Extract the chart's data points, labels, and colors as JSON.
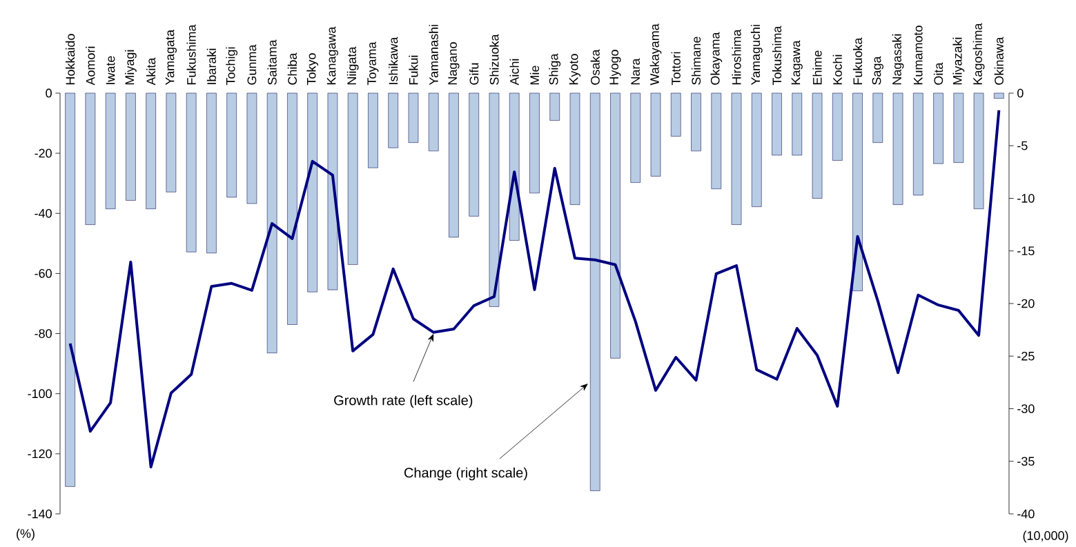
{
  "chart_data": {
    "type": "bar",
    "categories": [
      "Hokkaido",
      "Aomori",
      "Iwate",
      "Miyagi",
      "Akita",
      "Yamagata",
      "Fukushima",
      "Ibaraki",
      "Tochigi",
      "Gunma",
      "Saitama",
      "Chiba",
      "Tokyo",
      "Kanagawa",
      "Niigata",
      "Toyama",
      "Ishikawa",
      "Fukui",
      "Yamanashi",
      "Nagano",
      "Gifu",
      "Shizuoka",
      "Aichi",
      "Mie",
      "Shiga",
      "Kyoto",
      "Osaka",
      "Hyogo",
      "Nara",
      "Wakayama",
      "Tottori",
      "Shimane",
      "Okayama",
      "Hiroshima",
      "Yamaguchi",
      "Tokushima",
      "Kagawa",
      "Ehime",
      "Kochi",
      "Fukuoka",
      "Saga",
      "Nagasaki",
      "Kumamoto",
      "Oita",
      "Miyazaki",
      "Kagoshima",
      "Okinawa"
    ],
    "series": [
      {
        "axis": "y2",
        "color": "#b8cce4",
        "values": [
          -37.4,
          -12.5,
          -11.0,
          -10.2,
          -11.0,
          -9.4,
          -15.1,
          -15.2,
          -9.9,
          -10.5,
          -24.7,
          -22.0,
          -18.9,
          -18.7,
          -16.3,
          -7.1,
          -5.2,
          -4.7,
          -5.5,
          -13.7,
          -11.7,
          -20.3,
          -14.0,
          -9.5,
          -2.6,
          -10.6,
          -37.8,
          -25.2,
          -8.5,
          -7.9,
          -4.1,
          -5.5,
          -9.1,
          -12.5,
          -10.8,
          -5.9,
          -5.9,
          -10.0,
          -6.4,
          -18.8,
          -4.7,
          -10.6,
          -9.7,
          -6.7,
          -6.6,
          -11.0,
          -0.5
        ]
      },
      {
        "type": "line",
        "color": "#000080",
        "values": [
          -83.3,
          -112.5,
          -103.0,
          -56.2,
          -124.4,
          -99.8,
          -93.6,
          -64.3,
          -63.3,
          -65.6,
          -43.4,
          -48.4,
          -22.7,
          -27.3,
          -85.8,
          -80.3,
          -58.5,
          -75.1,
          -79.6,
          -78.5,
          -70.7,
          -67.7,
          -26.2,
          -65.4,
          -25.0,
          -54.9,
          -55.5,
          -57.1,
          -76.0,
          -98.9,
          -87.9,
          -95.5,
          -60.1,
          -57.4,
          -92.0,
          -95.2,
          -78.3,
          -87.2,
          -104.2,
          -47.7,
          -69.1,
          -93.0,
          -67.2,
          -70.5,
          -72.3,
          -80.6,
          -5.7
        ]
      }
    ],
    "ylabel": "(%)",
    "y2label": "(10,000)",
    "ylim": [
      -140,
      0
    ],
    "yticks": [
      -140,
      -120,
      -100,
      -80,
      -60,
      -40,
      -20,
      0
    ],
    "y2lim": [
      -40,
      0
    ],
    "y2ticks": [
      -40,
      -35,
      -30,
      -25,
      -20,
      -15,
      -10,
      -5,
      0
    ],
    "annotations": [
      {
        "text": "Growth rate (left scale)",
        "x": "Yamanashi",
        "y": -80
      },
      "Change (right scale)"
    ]
  }
}
